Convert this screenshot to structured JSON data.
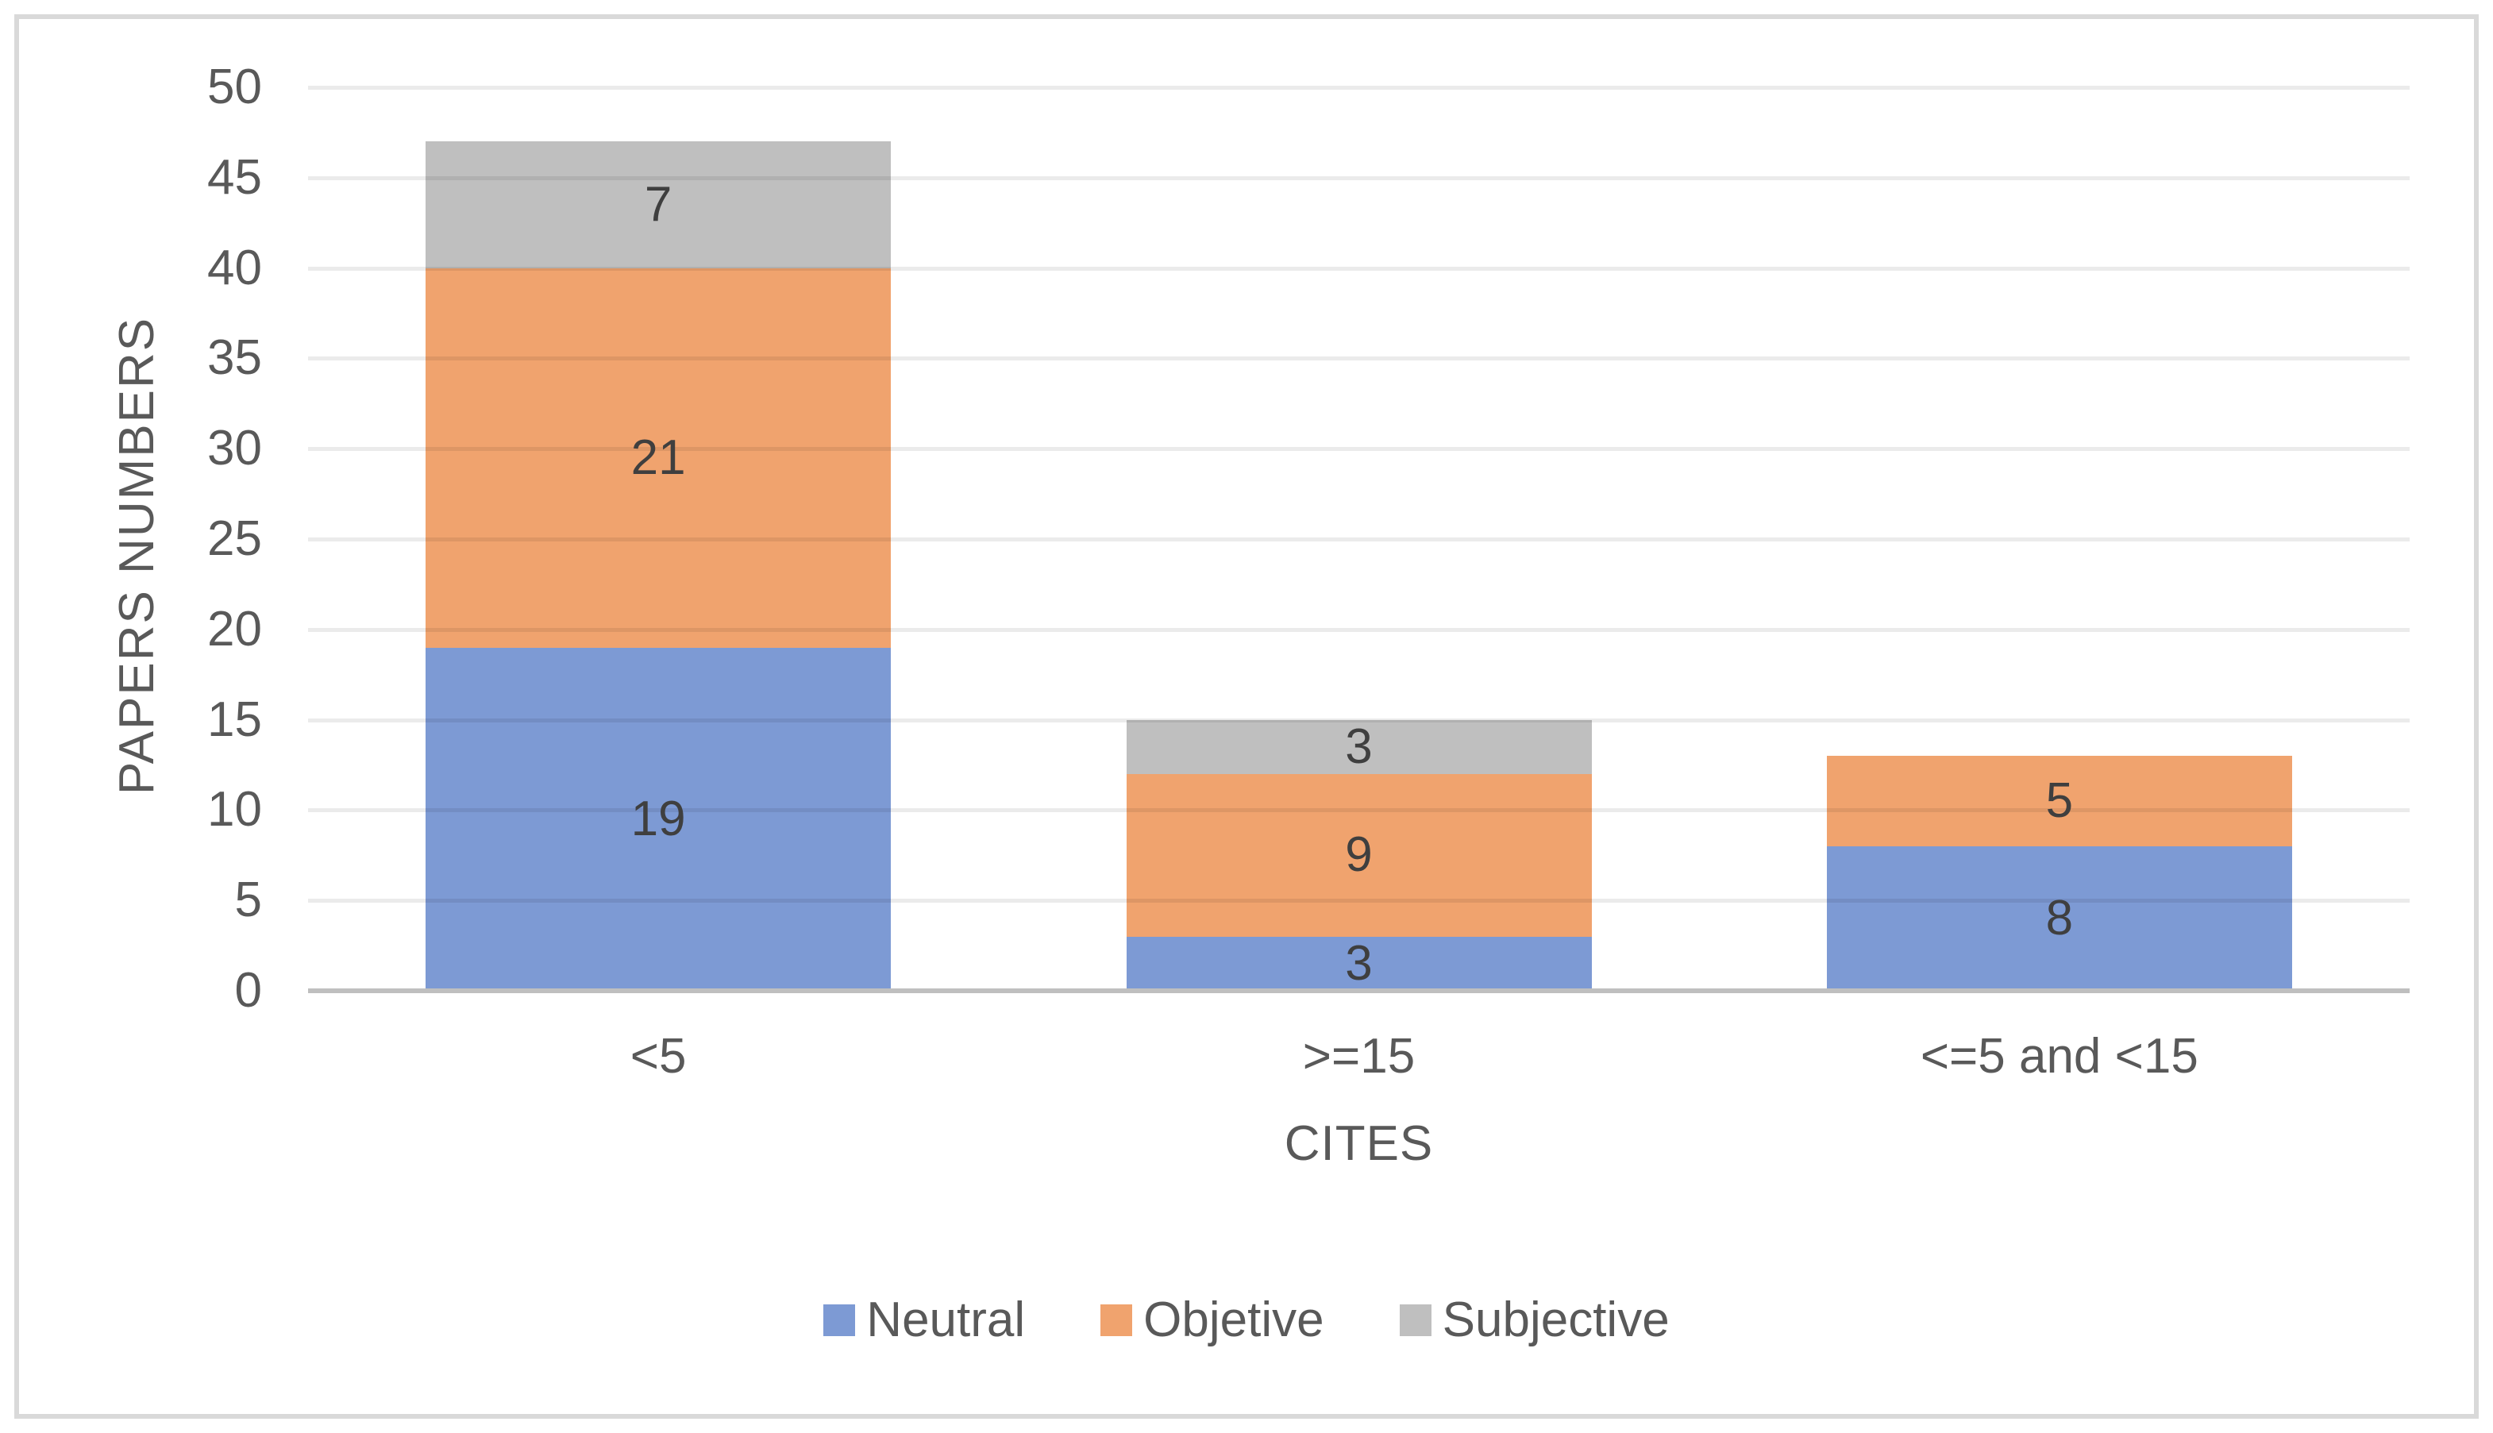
{
  "figure": {
    "background": "#FFFFFF",
    "border_color": "#D9D9D9"
  },
  "chart_data": {
    "type": "bar",
    "stacked": true,
    "title": "",
    "categories": [
      "<5",
      ">=15",
      "<=5 and <15"
    ],
    "series": [
      {
        "name": "Neutral",
        "color": "#7D9AD4",
        "values": [
          19,
          3,
          8
        ]
      },
      {
        "name": "Objetive",
        "color": "#F0A36E",
        "values": [
          21,
          9,
          5
        ]
      },
      {
        "name": "Subjective",
        "color": "#BFBFBF",
        "values": [
          7,
          3,
          0
        ]
      }
    ],
    "stack_totals": [
      47,
      15,
      13
    ],
    "data_labels_shown": true,
    "xlabel": "CITES",
    "ylabel": "PAPERS NUMBERS",
    "ylim": [
      0,
      50
    ],
    "yticks": [
      0,
      5,
      10,
      15,
      20,
      25,
      30,
      35,
      40,
      45,
      50
    ],
    "grid": true,
    "legend_position": "bottom",
    "colors": {
      "axis_text": "#595959",
      "data_label_text": "#3F3F3F",
      "gridline": "rgba(0,0,0,0.08)",
      "axis_line": "#BFBFBF"
    }
  }
}
